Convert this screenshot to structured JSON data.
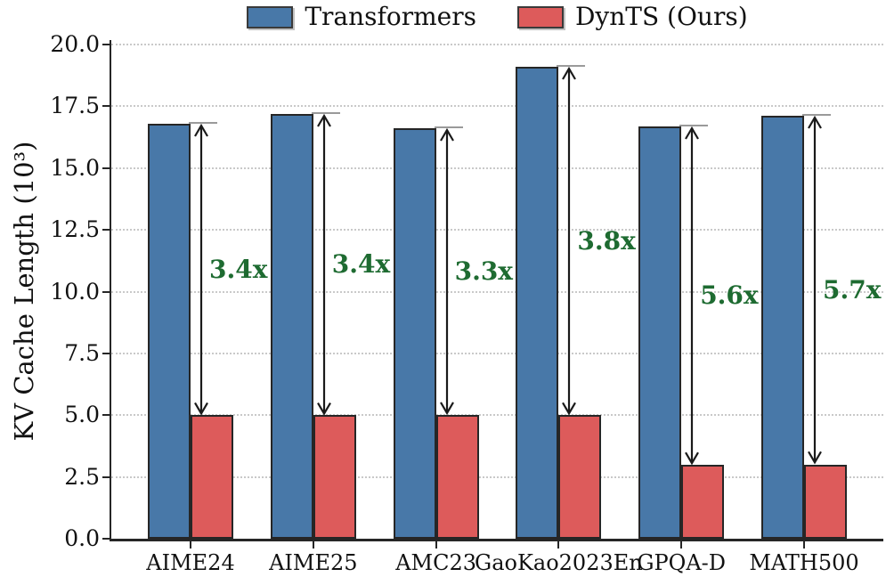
{
  "legend": {
    "items": [
      {
        "label": "Transformers",
        "color": "#4878A8"
      },
      {
        "label": "DynTS (Ours)",
        "color": "#DD5B5B"
      }
    ]
  },
  "chart_data": {
    "type": "bar",
    "title": "",
    "xlabel": "",
    "ylabel": "KV Cache Length (10³)",
    "categories": [
      "AIME24",
      "AIME25",
      "AMC23",
      "GaoKao2023En",
      "GPQA-D",
      "MATH500"
    ],
    "series": [
      {
        "name": "Transformers",
        "color": "#4878A8",
        "values": [
          16.8,
          17.2,
          16.6,
          19.1,
          16.7,
          17.1
        ]
      },
      {
        "name": "DynTS (Ours)",
        "color": "#DD5B5B",
        "values": [
          5.0,
          5.0,
          5.0,
          5.0,
          3.0,
          3.0
        ]
      }
    ],
    "annotations": [
      {
        "category": "AIME24",
        "label": "3.4x"
      },
      {
        "category": "AIME25",
        "label": "3.4x"
      },
      {
        "category": "AMC23",
        "label": "3.3x"
      },
      {
        "category": "GaoKao2023En",
        "label": "3.8x"
      },
      {
        "category": "GPQA-D",
        "label": "5.6x"
      },
      {
        "category": "MATH500",
        "label": "5.7x"
      }
    ],
    "annotation_color": "#1E6B31",
    "ylim": [
      0,
      20
    ],
    "ytick_labels": [
      "0.0",
      "2.5",
      "5.0",
      "7.5",
      "10.0",
      "12.5",
      "15.0",
      "17.5",
      "20.0"
    ],
    "grid": {
      "axis": "y",
      "style": "dotted",
      "color": "#C9C9C9"
    },
    "legend_position": "top-center",
    "arrow_color": "#1a1a1a"
  }
}
